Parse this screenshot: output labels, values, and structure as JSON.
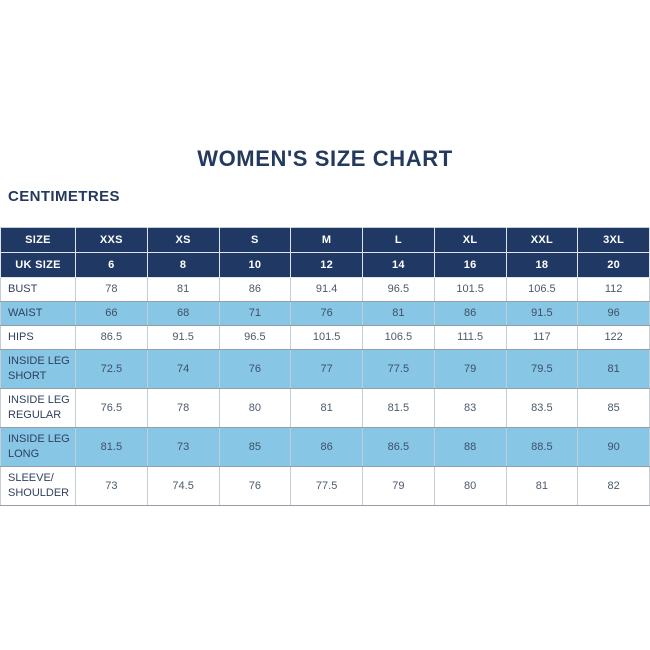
{
  "page": {
    "title": "WOMEN'S SIZE CHART",
    "subtitle": "CENTIMETRES"
  },
  "colors": {
    "navy_header": "#1f3864",
    "row_blue": "#87c6e5",
    "row_white": "#ffffff",
    "title_text": "#24395e",
    "body_text": "#4c5a6c"
  },
  "chart_data": {
    "type": "table",
    "title": "WOMEN'S SIZE CHART",
    "units": "CENTIMETRES",
    "header_rows": [
      {
        "label": "SIZE",
        "values": [
          "XXS",
          "XS",
          "S",
          "M",
          "L",
          "XL",
          "XXL",
          "3XL"
        ]
      },
      {
        "label": "UK SIZE",
        "values": [
          "6",
          "8",
          "10",
          "12",
          "14",
          "16",
          "18",
          "20"
        ]
      }
    ],
    "rows": [
      {
        "label": "BUST",
        "values": [
          "78",
          "81",
          "86",
          "91.4",
          "96.5",
          "101.5",
          "106.5",
          "112"
        ]
      },
      {
        "label": "WAIST",
        "values": [
          "66",
          "68",
          "71",
          "76",
          "81",
          "86",
          "91.5",
          "96"
        ]
      },
      {
        "label": "HIPS",
        "values": [
          "86.5",
          "91.5",
          "96.5",
          "101.5",
          "106.5",
          "111.5",
          "117",
          "122"
        ]
      },
      {
        "label": "INSIDE LEG\nSHORT",
        "values": [
          "72.5",
          "74",
          "76",
          "77",
          "77.5",
          "79",
          "79.5",
          "81"
        ]
      },
      {
        "label": "INSIDE LEG\nREGULAR",
        "values": [
          "76.5",
          "78",
          "80",
          "81",
          "81.5",
          "83",
          "83.5",
          "85"
        ]
      },
      {
        "label": "INSIDE LEG\nLONG",
        "values": [
          "81.5",
          "73",
          "85",
          "86",
          "86.5",
          "88",
          "88.5",
          "90"
        ]
      },
      {
        "label": "SLEEVE/\nSHOULDER",
        "values": [
          "73",
          "74.5",
          "76",
          "77.5",
          "79",
          "80",
          "81",
          "82"
        ]
      }
    ]
  }
}
